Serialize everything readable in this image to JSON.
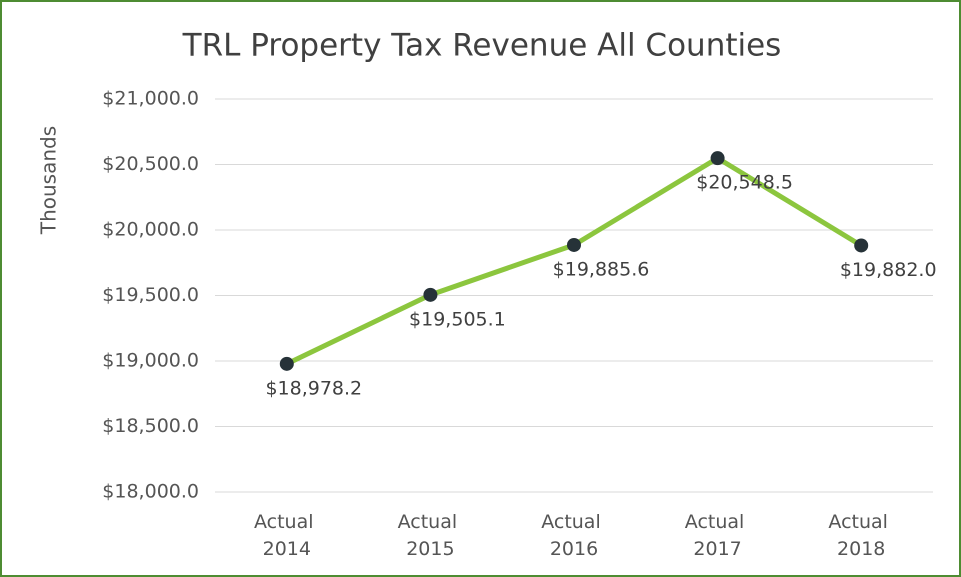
{
  "chart_data": {
    "type": "line",
    "title": "TRL Property Tax Revenue All Counties",
    "y_label": "Thousands",
    "categories": [
      "Actual 2014",
      "Actual 2015",
      "Actual 2016",
      "Actual 2017",
      "Actual 2018"
    ],
    "series": [
      {
        "name": "TRL Property Tax Revenue",
        "color": "#8cc63e",
        "marker_color": "#263238",
        "values": [
          18978.2,
          19505.1,
          19885.6,
          20548.5,
          19882.0
        ],
        "value_labels": [
          "$18,978.2",
          "$19,505.1",
          "$19,885.6",
          "$20,548.5",
          "$19,882.0"
        ]
      }
    ],
    "ylim": [
      18000,
      21000
    ],
    "yticks": [
      {
        "value": 18000,
        "label": "$18,000.0"
      },
      {
        "value": 18500,
        "label": "$18,500.0"
      },
      {
        "value": 19000,
        "label": "$19,000.0"
      },
      {
        "value": 19500,
        "label": "$19,500.0"
      },
      {
        "value": 20000,
        "label": "$20,000.0"
      },
      {
        "value": 20500,
        "label": "$20,500.0"
      },
      {
        "value": 21000,
        "label": "$21,000.0"
      }
    ],
    "grid": true
  }
}
